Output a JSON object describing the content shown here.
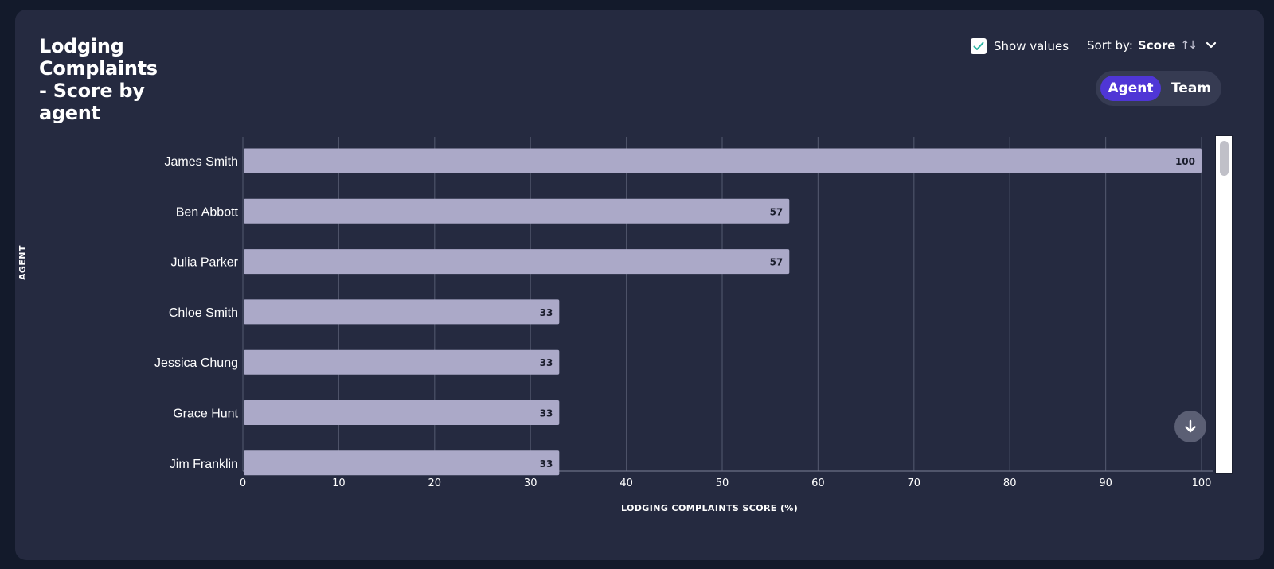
{
  "header": {
    "title": "Lodging Complaints - Score by agent",
    "show_values_label": "Show values",
    "show_values_checked": true,
    "sort_prefix": "Sort by:",
    "sort_value": "Score",
    "sort_arrows": "↑↓"
  },
  "toggle": {
    "options": [
      "Agent",
      "Team"
    ],
    "selected": "Agent"
  },
  "colors": {
    "bar": "#aba9c8",
    "accent": "#4f36d6",
    "checkmark": "#2fb6a4"
  },
  "chart_data": {
    "type": "bar",
    "orientation": "horizontal",
    "title": "Lodging Complaints - Score by agent",
    "xlabel": "LODGING COMPLAINTS SCORE (%)",
    "ylabel": "AGENT",
    "categories": [
      "James Smith",
      "Ben Abbott",
      "Julia Parker",
      "Chloe Smith",
      "Jessica Chung",
      "Grace Hunt",
      "Jim Franklin"
    ],
    "values": [
      100,
      57,
      57,
      33,
      33,
      33,
      33
    ],
    "data_labels": [
      "100",
      "57",
      "57",
      "33",
      "33",
      "33",
      "33"
    ],
    "xlim": [
      0,
      100
    ],
    "xticks": [
      "0",
      "10",
      "20",
      "30",
      "40",
      "50",
      "60",
      "70",
      "80",
      "90",
      "100"
    ],
    "grid": "vertical",
    "show_values": true
  }
}
